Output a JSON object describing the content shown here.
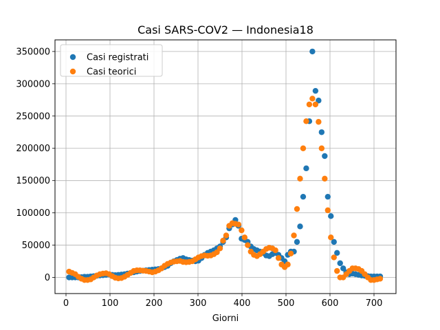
{
  "chart_data": {
    "type": "scatter",
    "title": "Casi SARS-COV2 — Indonesia18",
    "xlabel": "Giorni",
    "ylabel": "",
    "xlim": [
      -25,
      750
    ],
    "ylim": [
      -25000,
      368000
    ],
    "xticks": [
      0,
      100,
      200,
      300,
      400,
      500,
      600,
      700
    ],
    "yticks": [
      0,
      50000,
      100000,
      150000,
      200000,
      250000,
      300000,
      350000
    ],
    "grid": true,
    "legend_position": "top-left",
    "series": [
      {
        "name": "Casi registrati",
        "color": "#1f77b4",
        "x": [
          7,
          14,
          21,
          28,
          35,
          42,
          49,
          56,
          63,
          70,
          77,
          84,
          91,
          98,
          105,
          112,
          119,
          126,
          133,
          140,
          147,
          154,
          161,
          168,
          175,
          182,
          189,
          196,
          203,
          210,
          217,
          224,
          231,
          238,
          245,
          252,
          259,
          266,
          273,
          280,
          287,
          294,
          301,
          308,
          315,
          322,
          329,
          336,
          343,
          350,
          357,
          364,
          371,
          378,
          385,
          392,
          399,
          406,
          413,
          420,
          427,
          434,
          441,
          448,
          455,
          462,
          469,
          476,
          483,
          490,
          497,
          504,
          511,
          518,
          525,
          532,
          539,
          546,
          553,
          560,
          567,
          574,
          581,
          588,
          595,
          602,
          609,
          616,
          623,
          630,
          637,
          644,
          651,
          658,
          665,
          672,
          679,
          686,
          693,
          700,
          707,
          714
        ],
        "y": [
          0,
          0,
          0,
          0,
          500,
          1000,
          1000,
          1500,
          2000,
          2500,
          3000,
          3500,
          4000,
          4500,
          4000,
          3500,
          4000,
          4500,
          5000,
          6000,
          7000,
          8000,
          9000,
          10000,
          10500,
          11000,
          11500,
          12000,
          12500,
          13000,
          14000,
          16000,
          18000,
          22000,
          25000,
          27000,
          29000,
          30000,
          28000,
          27000,
          26000,
          25000,
          26000,
          30000,
          35000,
          38000,
          40000,
          42000,
          45000,
          48000,
          55000,
          62000,
          76000,
          82000,
          89000,
          80000,
          60000,
          58000,
          55000,
          48000,
          44000,
          42000,
          40000,
          38000,
          34000,
          33000,
          36000,
          38000,
          35000,
          30000,
          25000,
          35000,
          40000,
          40000,
          55000,
          79000,
          125000,
          169000,
          242000,
          350000,
          289000,
          274000,
          225000,
          188000,
          125000,
          95000,
          55000,
          38000,
          22000,
          14000,
          8000,
          5000,
          6000,
          5000,
          4000,
          3000,
          2500,
          2000,
          1500,
          1500,
          1500,
          1500
        ]
      },
      {
        "name": "Casi teorici",
        "color": "#ff7f0e",
        "x": [
          7,
          14,
          21,
          28,
          35,
          42,
          49,
          56,
          63,
          70,
          77,
          84,
          91,
          98,
          105,
          112,
          119,
          126,
          133,
          140,
          147,
          154,
          161,
          168,
          175,
          182,
          189,
          196,
          203,
          210,
          217,
          224,
          231,
          238,
          245,
          252,
          259,
          266,
          273,
          280,
          287,
          294,
          301,
          308,
          315,
          322,
          329,
          336,
          343,
          350,
          357,
          364,
          371,
          378,
          385,
          392,
          399,
          406,
          413,
          420,
          427,
          434,
          441,
          448,
          455,
          462,
          469,
          476,
          483,
          490,
          497,
          504,
          511,
          518,
          525,
          532,
          539,
          546,
          553,
          560,
          567,
          574,
          581,
          588,
          595,
          602,
          609,
          616,
          623,
          630,
          637,
          644,
          651,
          658,
          665,
          672,
          679,
          686,
          693,
          700,
          707,
          714
        ],
        "y": [
          9000,
          7000,
          5000,
          1000,
          -2000,
          -4000,
          -4000,
          -3000,
          0,
          3000,
          5000,
          6000,
          6500,
          5000,
          2000,
          -500,
          -1500,
          -1000,
          1000,
          4000,
          7000,
          10000,
          11000,
          11000,
          10500,
          10000,
          9000,
          8000,
          9000,
          11000,
          14000,
          18000,
          21000,
          23000,
          24500,
          25000,
          25500,
          24000,
          23500,
          24000,
          25000,
          28000,
          31000,
          33000,
          34000,
          33500,
          34000,
          36000,
          39000,
          45000,
          57000,
          65000,
          80000,
          84000,
          83000,
          82000,
          73000,
          62000,
          50000,
          40000,
          35000,
          33000,
          36000,
          40000,
          44000,
          46000,
          45000,
          42000,
          30000,
          20000,
          16000,
          20000,
          37000,
          65000,
          106000,
          153000,
          200000,
          242000,
          268000,
          277000,
          268000,
          241000,
          200000,
          153000,
          104000,
          62000,
          31000,
          10000,
          0,
          0,
          5000,
          10000,
          14000,
          14000,
          13000,
          10000,
          5000,
          0,
          -4000,
          -4000,
          -3000,
          -2000
        ]
      }
    ]
  }
}
